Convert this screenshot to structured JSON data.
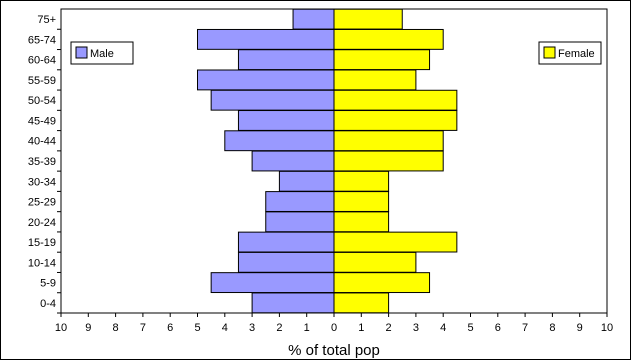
{
  "chart_data": {
    "type": "bar",
    "orientation": "horizontal",
    "layout": "population-pyramid",
    "title": "",
    "xlabel": "% of total pop",
    "ylabel": "",
    "categories": [
      "0-4",
      "5-9",
      "10-14",
      "15-19",
      "20-24",
      "25-29",
      "30-34",
      "35-39",
      "40-44",
      "45-49",
      "50-54",
      "55-59",
      "60-64",
      "65-74",
      "75+"
    ],
    "series": [
      {
        "name": "Male",
        "color": "#9999ff",
        "side": "left",
        "values": [
          3,
          4.5,
          3.5,
          3.5,
          2.5,
          2.5,
          2,
          3,
          4,
          3.5,
          4.5,
          5,
          3.5,
          5,
          1.5
        ]
      },
      {
        "name": "Female",
        "color": "#ffff00",
        "side": "right",
        "values": [
          2,
          3.5,
          3,
          4.5,
          2,
          2,
          2,
          4,
          4,
          4.5,
          4.5,
          3,
          3.5,
          4,
          2.5
        ]
      }
    ],
    "xlim": [
      -10,
      10
    ],
    "xtick_labels": [
      "10",
      "9",
      "8",
      "7",
      "6",
      "5",
      "4",
      "3",
      "2",
      "1",
      "0",
      "1",
      "2",
      "3",
      "4",
      "5",
      "6",
      "7",
      "8",
      "9",
      "10"
    ],
    "grid": false,
    "legend": [
      {
        "label": "Male",
        "placement": "top-left"
      },
      {
        "label": "Female",
        "placement": "top-right"
      }
    ]
  }
}
